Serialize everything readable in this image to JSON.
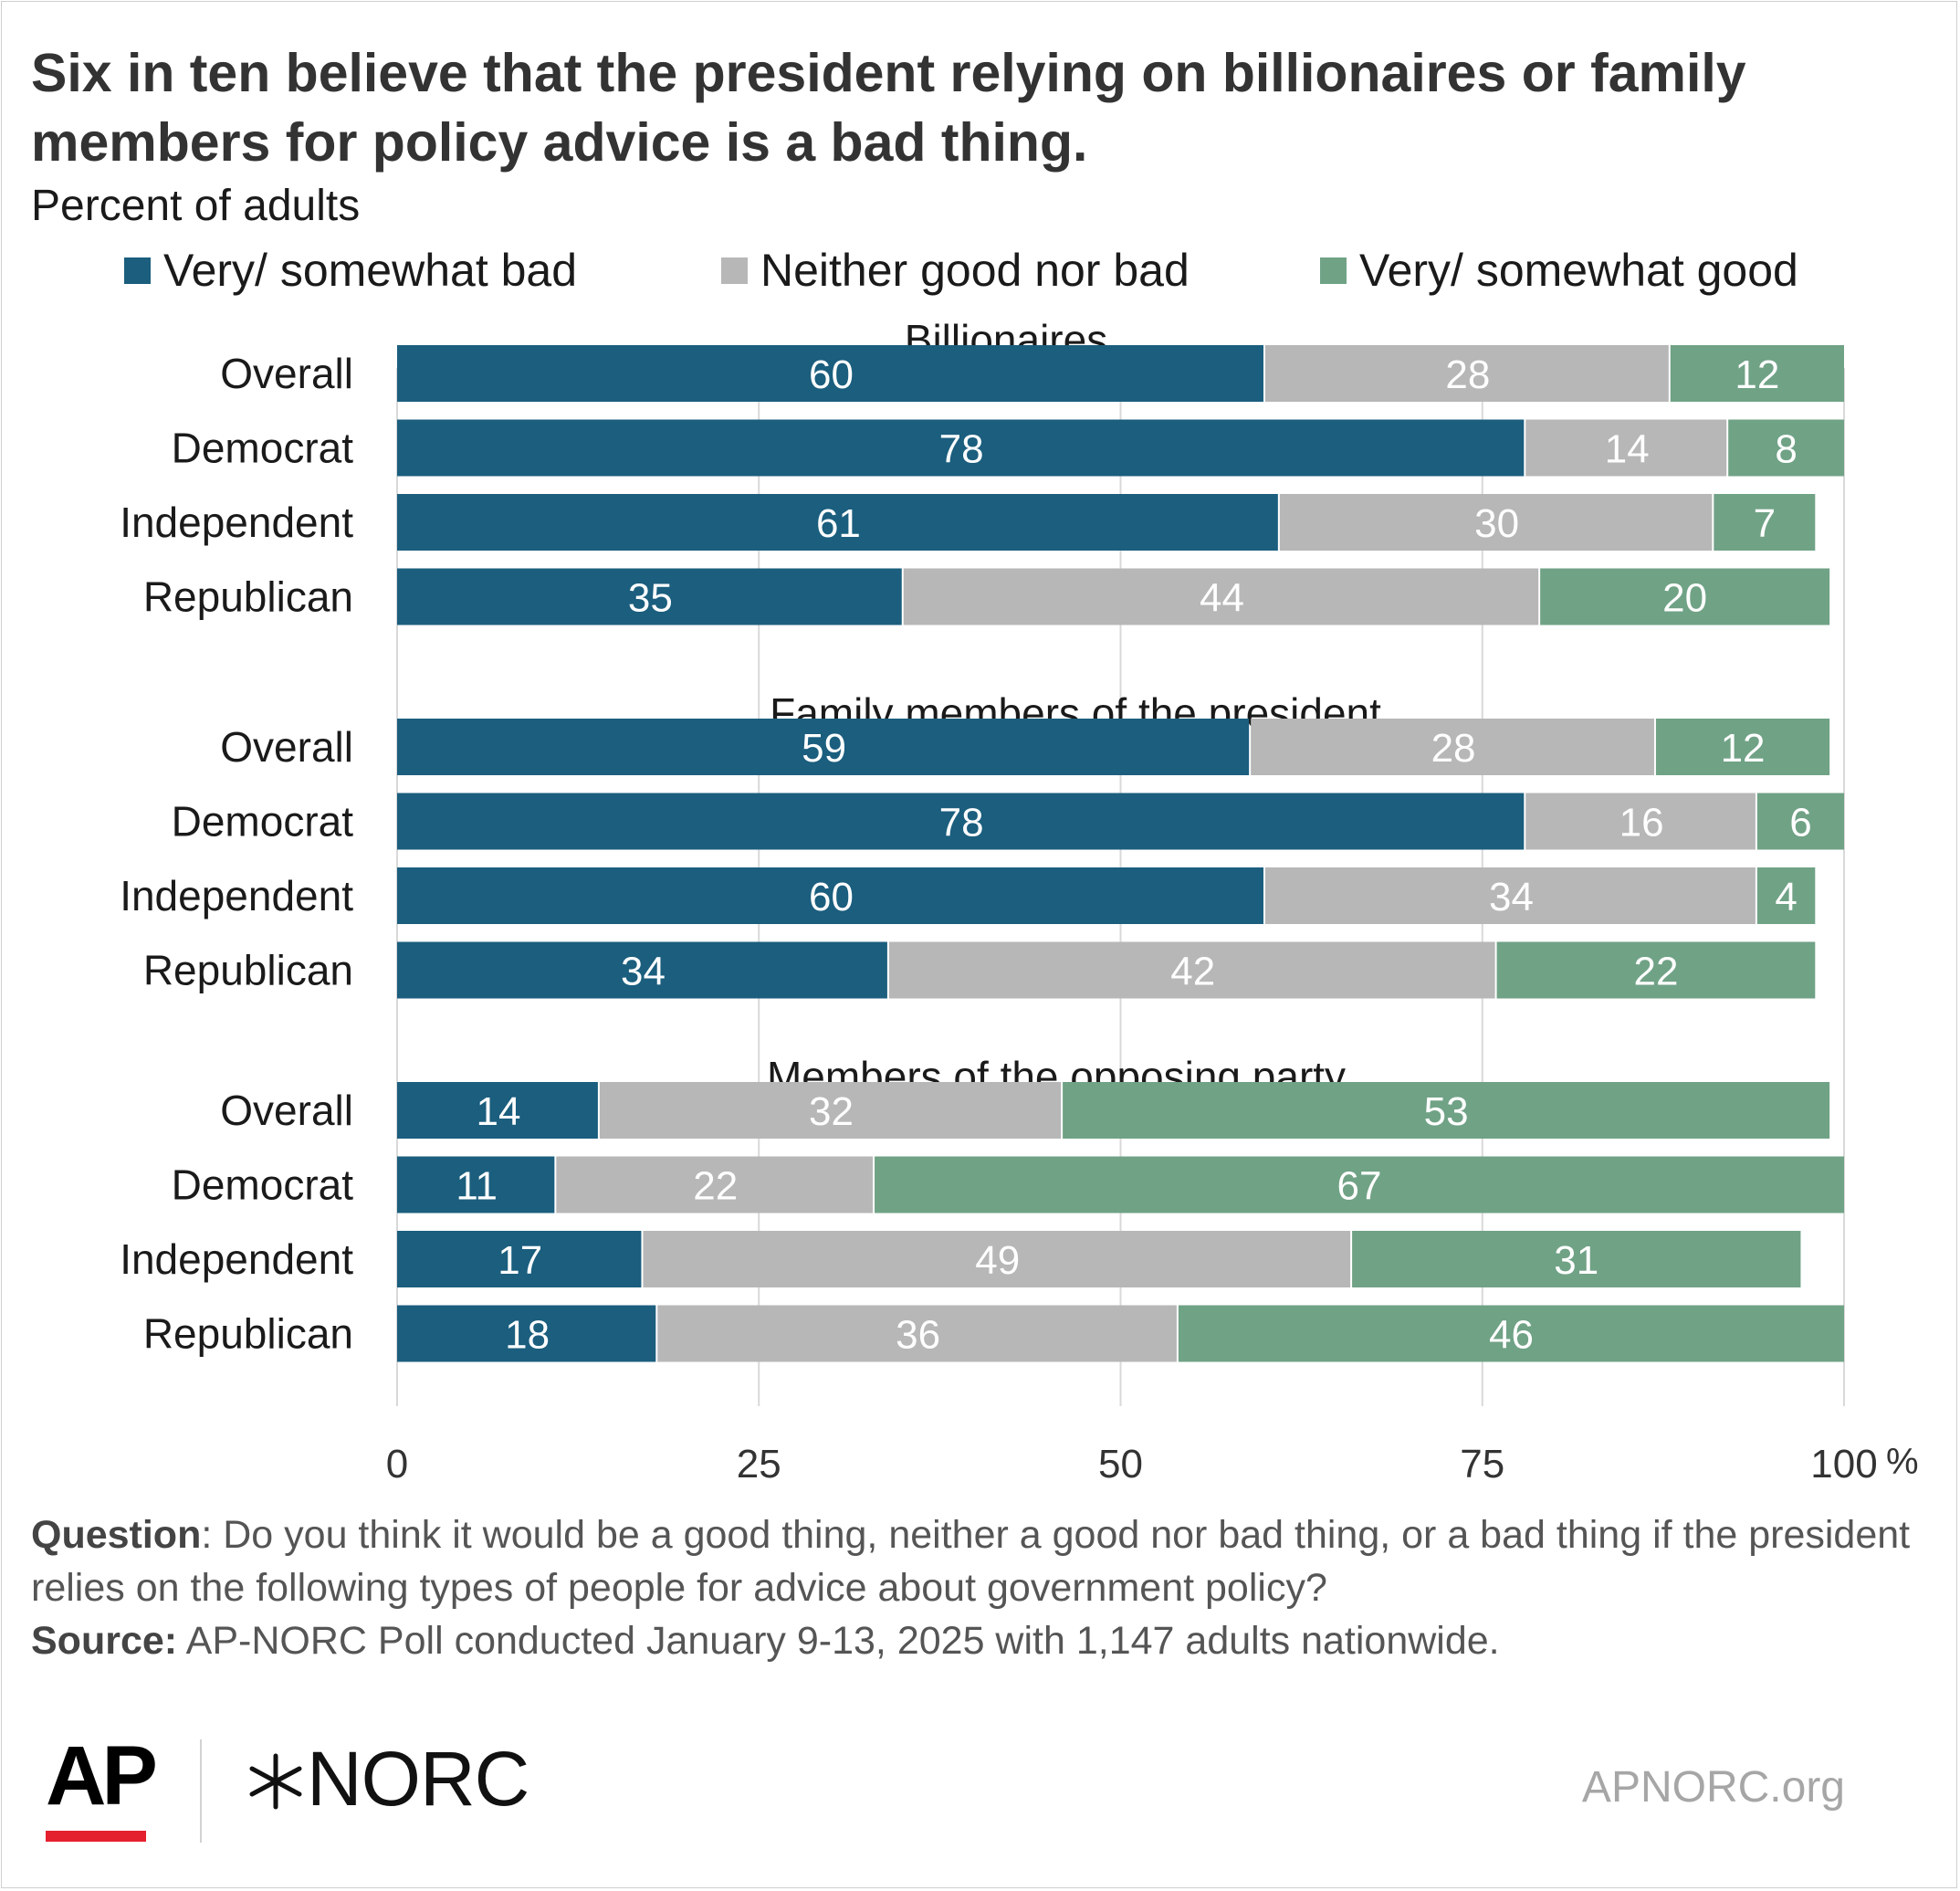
{
  "header": {
    "title": "Six in ten believe that the president relying on billionaires or family members for policy advice is a bad thing.",
    "subtitle": "Percent of adults"
  },
  "legend": [
    {
      "label": "Very/ somewhat bad",
      "color": "#1b5e7e"
    },
    {
      "label": "Neither good nor bad",
      "color": "#b7b7b7"
    },
    {
      "label": "Very/ somewhat good",
      "color": "#70a286"
    }
  ],
  "chart_data": {
    "type": "bar",
    "orientation": "horizontal",
    "stacked": true,
    "xlim": [
      0,
      100
    ],
    "x_ticks": [
      "0",
      "25",
      "50",
      "75",
      "100"
    ],
    "x_unit": "%",
    "grid": true,
    "legend_position": "top",
    "groups": [
      {
        "title": "Billionaires",
        "categories": [
          "Overall",
          "Democrat",
          "Independent",
          "Republican"
        ],
        "series": [
          {
            "name": "Very/ somewhat bad",
            "values": [
              60,
              78,
              61,
              35
            ]
          },
          {
            "name": "Neither good nor bad",
            "values": [
              28,
              14,
              30,
              44
            ]
          },
          {
            "name": "Very/ somewhat good",
            "values": [
              12,
              8,
              7,
              20
            ]
          }
        ]
      },
      {
        "title": "Family members of the president",
        "categories": [
          "Overall",
          "Democrat",
          "Independent",
          "Republican"
        ],
        "series": [
          {
            "name": "Very/ somewhat bad",
            "values": [
              59,
              78,
              60,
              34
            ]
          },
          {
            "name": "Neither good nor bad",
            "values": [
              28,
              16,
              34,
              42
            ]
          },
          {
            "name": "Very/ somewhat good",
            "values": [
              12,
              6,
              4,
              22
            ]
          }
        ]
      },
      {
        "title": "Members of the opposing party",
        "categories": [
          "Overall",
          "Democrat",
          "Independent",
          "Republican"
        ],
        "series": [
          {
            "name": "Very/ somewhat bad",
            "values": [
              14,
              11,
              17,
              18
            ]
          },
          {
            "name": "Neither good nor bad",
            "values": [
              32,
              22,
              49,
              36
            ]
          },
          {
            "name": "Very/ somewhat good",
            "values": [
              53,
              67,
              31,
              46
            ]
          }
        ]
      }
    ]
  },
  "footer": {
    "question_label": "Question",
    "question_text": ": Do you think it would be a good thing, neither a good nor bad thing, or a bad thing if the president relies on the following types of people for advice about government policy?",
    "source_label": "Source:",
    "source_text": " AP-NORC Poll conducted January 9-13, 2025 with 1,147 adults nationwide."
  },
  "branding": {
    "ap_logo": "AP",
    "norc_logo": "NORC",
    "norc_mark_icon": "norc-star-icon",
    "site": "APNORC.org",
    "ap_accent_color": "#e5202e"
  }
}
